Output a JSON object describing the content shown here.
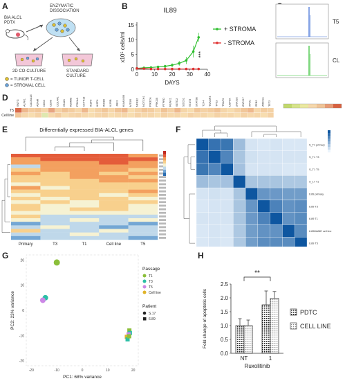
{
  "panels": {
    "A": {
      "letter": "A",
      "pdtx_label": "BIA ALCL\nPDTX",
      "dissociation_label": "ENZYMATIC\nDISSOCIATION",
      "coculture_label": "2D CO-CULTURE",
      "standard_label": "STANDARD\nCULTURE",
      "legend_tumor": "= TUMOR T-CELL",
      "legend_stromal": "= STROMAL CELL"
    },
    "B": {
      "letter": "B",
      "significance": "***"
    },
    "C": {
      "letter": "C",
      "track_labels": [
        "T5",
        "CL"
      ]
    },
    "D": {
      "letter": "D",
      "genes": [
        "SNTG",
        "ALPK1",
        "CACNA1E",
        "ADAM",
        "CD63",
        "CD68",
        "COL4A1",
        "GNAS",
        "KDM6B",
        "PRKAA",
        "CHTF18",
        "IKZF5",
        "IKZF6",
        "INO80",
        "IL2RB",
        "JAK3",
        "KIAA0406",
        "MTOR",
        "NFKB2",
        "NOTCH1",
        "PIK3CA",
        "PRKCB",
        "PTPRD",
        "RUNX1",
        "SETD2",
        "SOCS1",
        "STAT3",
        "STAT5B",
        "TCF4",
        "TNFAIP3",
        "TP53",
        "TRAF3",
        "USP9X",
        "ZNF292",
        "ZNF217",
        "XPO1",
        "ZEB2",
        "ARID1A",
        "TET2"
      ],
      "rows": [
        "T5",
        "Cell line"
      ],
      "row_colors": [
        [
          "#d86a4a",
          "#eeb98e",
          "#f3cca0",
          "#f1c79a",
          "#f5d6aa",
          "#e7a582",
          "#f4d2a6",
          "#f0c497",
          "#f3cda0",
          "#f6d8ac",
          "#eeb98e",
          "#f7ddb0",
          "#f4d2a6",
          "#f1c79a",
          "#f5d6aa",
          "#f0c497",
          "#eeb98e",
          "#f7ddb0",
          "#f4d2a6",
          "#f1c79a",
          "#f3cda0",
          "#f6d8ac",
          "#f0c497",
          "#f4d2a6",
          "#eeb98e",
          "#f5d6aa",
          "#f7ddb0",
          "#f1c79a",
          "#f4d2a6",
          "#f3cda0",
          "#f0c497",
          "#f5d6aa",
          "#f7ddb0",
          "#f4d2a6",
          "#f1c79a",
          "#eeb98e",
          "#f6d8ac",
          "#f3cda0",
          "#f4d2a6"
        ],
        [
          "#f1c79a",
          "#f5d6aa",
          "#f7ddb0",
          "#f4d2a6",
          "#dfe8b0",
          "#f6d8ac",
          "#f3cda0",
          "#f7ddb0",
          "#f5d6aa",
          "#f4d2a6",
          "#f6d8ac",
          "#f7ddb0",
          "#f5d6aa",
          "#f4d2a6",
          "#f7ddb0",
          "#f6d8ac",
          "#f5d6aa",
          "#f7ddb0",
          "#f4d2a6",
          "#f6d8ac",
          "#f5d6aa",
          "#f7ddb0",
          "#f4d2a6",
          "#f6d8ac",
          "#f5d6aa",
          "#f7ddb0",
          "#f4d2a6",
          "#f6d8ac",
          "#f5d6aa",
          "#f7ddb0",
          "#f4d2a6",
          "#f6d8ac",
          "#f5d6aa",
          "#f7ddb0",
          "#f4d2a6",
          "#f6d8ac",
          "#f5d6aa",
          "#f7ddb0",
          "#f4d2a6"
        ]
      ],
      "scale_colors": [
        "#c1d96b",
        "#d7e48a",
        "#ebe9a0",
        "#f6d8ac",
        "#f0c497",
        "#e89a74",
        "#d8603f"
      ]
    },
    "E": {
      "letter": "E",
      "columns": [
        "Primary",
        "T3",
        "T1",
        "Cell line",
        "T5"
      ],
      "palette": [
        "#2b6db1",
        "#74a7d4",
        "#bfd8ea",
        "#f6f2d3",
        "#f8d08d",
        "#f3a05f",
        "#e45c3a",
        "#c02a22"
      ],
      "rows": [
        [
          6,
          6,
          6,
          6,
          5
        ],
        [
          5,
          6,
          6,
          6,
          6
        ],
        [
          5,
          5,
          5,
          6,
          5
        ],
        [
          2,
          5,
          5,
          5,
          5
        ],
        [
          4,
          5,
          5,
          5,
          4
        ],
        [
          5,
          4,
          5,
          4,
          5
        ],
        [
          4,
          4,
          5,
          5,
          4
        ],
        [
          4,
          4,
          4,
          5,
          5
        ],
        [
          3,
          4,
          4,
          4,
          4
        ],
        [
          5,
          3,
          4,
          4,
          4
        ],
        [
          4,
          4,
          4,
          4,
          5
        ],
        [
          3,
          4,
          4,
          3,
          4
        ],
        [
          4,
          3,
          4,
          4,
          3
        ],
        [
          3,
          4,
          3,
          4,
          4
        ],
        [
          4,
          3,
          3,
          4,
          3
        ],
        [
          4,
          3,
          4,
          4,
          3
        ],
        [
          3,
          3,
          3,
          3,
          3
        ],
        [
          4,
          2,
          2,
          2,
          2
        ],
        [
          3,
          2,
          3,
          2,
          3
        ],
        [
          1,
          2,
          2,
          2,
          1
        ],
        [
          2,
          3,
          2,
          1,
          2
        ],
        [
          4,
          2,
          2,
          3,
          2
        ],
        [
          2,
          2,
          3,
          2,
          2
        ],
        [
          1,
          2,
          2,
          2,
          1
        ]
      ]
    },
    "F": {
      "letter": "F",
      "row_labels": [
        "S_T1 primary",
        "S_T1 T3",
        "S_T1 T5",
        "S_17 T1",
        "6.89 primary",
        "6.89 T3",
        "6.89 T1",
        "6.89MAME cell line",
        "6.89 T5"
      ],
      "matrix": [
        [
          1.0,
          0.82,
          0.8,
          0.35,
          0.1,
          0.08,
          0.1,
          0.08,
          0.08
        ],
        [
          0.82,
          1.0,
          0.7,
          0.3,
          0.12,
          0.1,
          0.1,
          0.1,
          0.1
        ],
        [
          0.8,
          0.7,
          1.0,
          0.32,
          0.1,
          0.1,
          0.1,
          0.08,
          0.08
        ],
        [
          0.35,
          0.3,
          0.32,
          1.0,
          0.3,
          0.3,
          0.3,
          0.28,
          0.28
        ],
        [
          0.1,
          0.12,
          0.1,
          0.3,
          1.0,
          0.6,
          0.58,
          0.55,
          0.55
        ],
        [
          0.08,
          0.1,
          0.1,
          0.3,
          0.6,
          1.0,
          0.72,
          0.62,
          0.65
        ],
        [
          0.1,
          0.1,
          0.1,
          0.3,
          0.58,
          0.72,
          1.0,
          0.62,
          0.66
        ],
        [
          0.08,
          0.1,
          0.08,
          0.28,
          0.55,
          0.62,
          0.62,
          1.0,
          0.66
        ],
        [
          0.08,
          0.1,
          0.08,
          0.28,
          0.55,
          0.65,
          0.66,
          0.66,
          1.0
        ]
      ]
    },
    "G": {
      "letter": "G"
    },
    "H": {
      "letter": "H",
      "significance": "**"
    }
  },
  "chart_data": [
    {
      "type": "line",
      "title": "IL89",
      "xlabel": "DAYS",
      "ylabel": "x10⁵ cells/ml",
      "xlim": [
        0,
        40
      ],
      "ylim": [
        0,
        15
      ],
      "xticks": [
        0,
        10,
        20,
        30,
        40
      ],
      "yticks": [
        0,
        5,
        10,
        15
      ],
      "x": [
        0,
        4,
        8,
        12,
        16,
        20,
        24,
        28,
        32,
        35
      ],
      "series": [
        {
          "name": "+ STROMA",
          "color": "#2fbf2f",
          "values": [
            0.3,
            0.5,
            0.6,
            0.8,
            1.0,
            1.4,
            2.0,
            3.0,
            6.0,
            10.8
          ],
          "errors": [
            0.2,
            0.3,
            0.3,
            0.4,
            0.5,
            0.6,
            0.8,
            1.2,
            2.0,
            1.5
          ]
        },
        {
          "name": "- STROMA",
          "color": "#e03030",
          "values": [
            0.3,
            0.2,
            0.1,
            0.1,
            0.1,
            0.1,
            0.1,
            0.1,
            0.1,
            0.1
          ],
          "errors": [
            0.1,
            0.1,
            0.05,
            0.05,
            0.05,
            0.05,
            0.05,
            0.05,
            0.05,
            0.05
          ]
        }
      ],
      "legend": "right"
    },
    {
      "type": "scatter",
      "xlabel": "PC1: 68% variance",
      "ylabel": "PC2: 23% variance",
      "xlim": [
        -22,
        22
      ],
      "ylim": [
        -22,
        22
      ],
      "xticks": [
        -20,
        -10,
        0,
        10,
        20
      ],
      "yticks": [
        -20,
        -10,
        0,
        10,
        20
      ],
      "legend_title_passage": "Passage",
      "legend_title_patient": "Patient",
      "passage_legend": [
        {
          "name": "T1",
          "color": "#8bbf3a"
        },
        {
          "name": "T3",
          "color": "#2bbfa6"
        },
        {
          "name": "T5",
          "color": "#cc88e6"
        },
        {
          "name": "Cell line",
          "color": "#e0b42a"
        }
      ],
      "patient_legend": [
        {
          "name": "S.17",
          "shape": "circle"
        },
        {
          "name": "6.89",
          "shape": "square"
        }
      ],
      "points": [
        {
          "x": -10,
          "y": 19,
          "passage": "T1",
          "patient": "S.17"
        },
        {
          "x": -14.5,
          "y": 5,
          "passage": "T3",
          "patient": "S.17"
        },
        {
          "x": -15.5,
          "y": 4,
          "passage": "T5",
          "patient": "S.17"
        },
        {
          "x": 18.5,
          "y": -8,
          "passage": "T1",
          "patient": "6.89"
        },
        {
          "x": 18.7,
          "y": -9,
          "passage": "T3",
          "patient": "6.89"
        },
        {
          "x": 18.2,
          "y": -9.5,
          "passage": "T5",
          "patient": "6.89"
        },
        {
          "x": 17.5,
          "y": -10.5,
          "passage": "Cell line",
          "patient": "6.89"
        },
        {
          "x": 17.8,
          "y": -11.5,
          "passage": "T3",
          "patient": "6.89"
        },
        {
          "x": 18.4,
          "y": -10.3,
          "passage": "T1",
          "patient": "6.89"
        }
      ]
    },
    {
      "type": "bar",
      "categories": [
        "NT",
        "1"
      ],
      "xlabel": "Ruxolitinib",
      "ylabel": "Fold change of apoptotic cells",
      "ylim": [
        0,
        2.5
      ],
      "yticks": [
        0,
        0.5,
        1.0,
        1.5,
        2.0,
        2.5
      ],
      "series": [
        {
          "name": "PDTC",
          "pattern": "dots-dark",
          "values": [
            1.0,
            1.75
          ],
          "errors": [
            0.25,
            0.5
          ]
        },
        {
          "name": "CELL LINE",
          "pattern": "dots-light",
          "values": [
            1.0,
            1.98
          ],
          "errors": [
            0.2,
            0.25
          ]
        }
      ],
      "legend": "right"
    }
  ]
}
